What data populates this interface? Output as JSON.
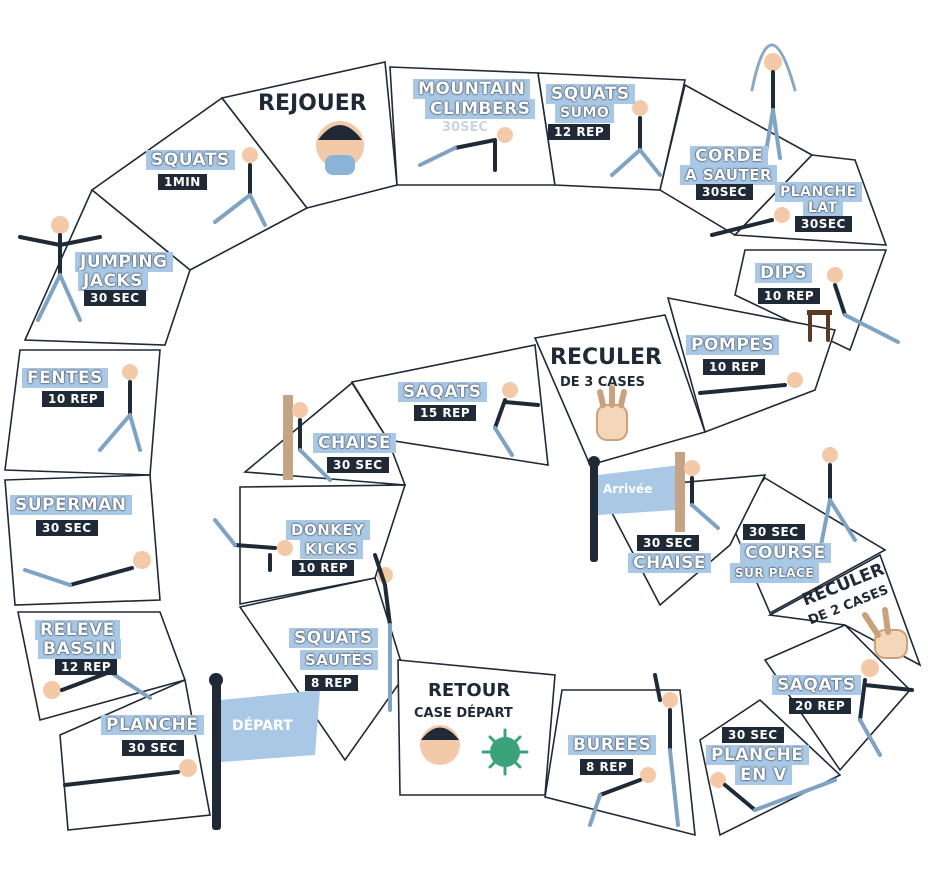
{
  "board": {
    "colors": {
      "tile_label_bg": "#a9c8e6",
      "tile_label_sub_bg": "#1f2a36",
      "outline": "#1f2a36",
      "flag": "#a9c8e6"
    },
    "flags": {
      "start": "DÉPART",
      "finish": "Arrivée"
    },
    "tiles": {
      "rejouer": "REJOUER",
      "mountain": {
        "title1": "MOUNTAIN",
        "title2": "CLIMBERS",
        "sub": "30SEC"
      },
      "squats_sumo": {
        "title1": "SQUATS",
        "title2": "SUMO",
        "sub": "12 REP"
      },
      "corde": {
        "title1": "CORDE",
        "title2": "A SAUTER",
        "sub": "30SEC"
      },
      "planche_lat": {
        "title1": "PLANCHE",
        "title2": "LAT",
        "sub": "30SEC"
      },
      "dips": {
        "title": "DIPS",
        "sub": "10 REP"
      },
      "pompes": {
        "title": "POMPES",
        "sub": "10 REP"
      },
      "reculer3": {
        "title": "RECULER",
        "sub": "DE 3 CASES"
      },
      "saqats15": {
        "title": "SAQATS",
        "sub": "15 REP"
      },
      "chaise_inner": {
        "title": "CHAISE",
        "sub": "30 SEC"
      },
      "donkey": {
        "title1": "DONKEY",
        "title2": "KICKS",
        "sub": "10 REP"
      },
      "squats_sautes": {
        "title1": "SQUATS",
        "title2": "SAUTÉS",
        "sub": "8 REP"
      },
      "retour": {
        "title": "RETOUR",
        "sub": "CASE DÉPART"
      },
      "burees": {
        "title": "BUREES",
        "sub": "8 REP"
      },
      "planche_v": {
        "sub": "30 SEC",
        "title1": "PLANCHE",
        "title2": "EN V"
      },
      "saqats20": {
        "title": "SAQATS",
        "sub": "20 REP"
      },
      "reculer2": {
        "title": "RECULER",
        "sub": "DE 2 CASES"
      },
      "course": {
        "sub": "30 SEC",
        "title1": "COURSE",
        "title2": "SUR PLACE"
      },
      "chaise_end": {
        "sub": "30 SEC",
        "title": "CHAISE"
      },
      "squats_1min": {
        "title": "SQUATS",
        "sub": "1MIN"
      },
      "jumping": {
        "title1": "JUMPING",
        "title2": "JACKS",
        "sub": "30 SEC"
      },
      "fentes": {
        "title": "FENTES",
        "sub": "10 REP"
      },
      "superman": {
        "title": "SUPERMAN",
        "sub": "30 SEC"
      },
      "releve": {
        "title1": "RELEVE",
        "title2": "BASSIN",
        "sub": "12 REP"
      },
      "planche": {
        "title": "PLANCHE",
        "sub": "30 SEC"
      }
    }
  }
}
